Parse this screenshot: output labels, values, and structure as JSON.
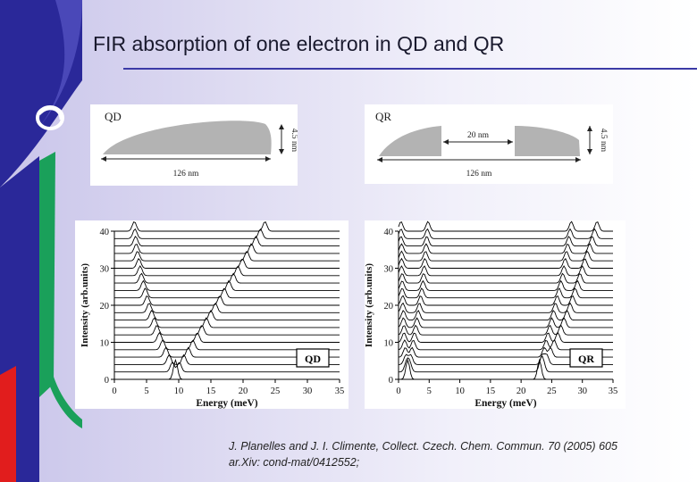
{
  "title": "FIR absorption of one electron in QD and QR",
  "colors": {
    "accent_rule": "#3b3aa6",
    "shape_fill": "#b3b3b3",
    "deco_blue": "#2a2899",
    "deco_green": "#1aa05a",
    "deco_red": "#e11d1d"
  },
  "qd_schematic": {
    "label": "QD",
    "height": "4.5 nm",
    "width": "126 nm"
  },
  "qr_schematic": {
    "label": "QR",
    "inner": "20 nm",
    "height": "4.5 nm",
    "width": "126 nm"
  },
  "plots": [
    {
      "label": "QD",
      "xlabel": "Energy (meV)",
      "ylabel": "Intensity (arb.units)"
    },
    {
      "label": "QR",
      "xlabel": "Energy (meV)",
      "ylabel": "Intensity (arb.units)"
    }
  ],
  "citation": {
    "line1": "J. Planelles and J. I. Climente, Collect. Czech. Chem. Commun. 70 (2005) 605",
    "line2": "ar.Xiv: cond-mat/0412552;"
  },
  "chart_data": [
    {
      "type": "line",
      "title": "QD",
      "xlabel": "Energy (meV)",
      "ylabel": "Intensity (arb.units)",
      "xlim": [
        0,
        35
      ],
      "ylim": [
        0,
        40
      ],
      "xticks": [
        0,
        5,
        10,
        15,
        20,
        25,
        30,
        35
      ],
      "yticks": [
        0,
        10,
        20,
        30,
        40
      ],
      "description_series": "stacked spectra at 21 offsets (0,2,...,40); two peaks per spectrum",
      "series": [
        {
          "name": "lower branch",
          "x": [
            9.5,
            9.0,
            8.5,
            8.0,
            7.5,
            7.0,
            6.6,
            6.2,
            5.8,
            5.4,
            5.1,
            4.8,
            4.5,
            4.2,
            4.0,
            3.8,
            3.6,
            3.4,
            3.3,
            3.2,
            3.1
          ],
          "y": [
            0,
            2,
            4,
            6,
            8,
            10,
            12,
            14,
            16,
            18,
            20,
            22,
            24,
            26,
            28,
            30,
            32,
            34,
            36,
            38,
            40
          ]
        },
        {
          "name": "upper branch",
          "x": [
            9.5,
            10.1,
            10.8,
            11.5,
            12.2,
            12.9,
            13.6,
            14.3,
            15.0,
            15.7,
            16.4,
            17.1,
            17.8,
            18.5,
            19.2,
            19.9,
            20.6,
            21.3,
            22.0,
            22.7,
            23.4
          ],
          "y": [
            0,
            2,
            4,
            6,
            8,
            10,
            12,
            14,
            16,
            18,
            20,
            22,
            24,
            26,
            28,
            30,
            32,
            34,
            36,
            38,
            40
          ]
        }
      ]
    },
    {
      "type": "line",
      "title": "QR",
      "xlabel": "Energy (meV)",
      "ylabel": "Intensity (arb.units)",
      "xlim": [
        0,
        35
      ],
      "ylim": [
        0,
        40
      ],
      "xticks": [
        0,
        5,
        10,
        15,
        20,
        25,
        30,
        35
      ],
      "yticks": [
        0,
        10,
        20,
        30,
        40
      ],
      "description_series": "stacked spectra at 21 offsets (0,2,...,40); four peaks per spectrum",
      "series": [
        {
          "name": "low 1",
          "x": [
            1.5,
            1.3,
            1.2,
            1.1,
            1.0,
            0.9,
            0.9,
            0.8,
            0.8,
            0.7,
            0.7,
            0.6,
            0.6,
            0.6,
            0.5,
            0.5,
            0.5,
            0.5,
            0.4,
            0.4,
            0.4
          ],
          "y": [
            0,
            2,
            4,
            6,
            8,
            10,
            12,
            14,
            16,
            18,
            20,
            22,
            24,
            26,
            28,
            30,
            32,
            34,
            36,
            38,
            40
          ]
        },
        {
          "name": "low 2",
          "x": [
            1.5,
            1.8,
            2.0,
            2.2,
            2.4,
            2.6,
            2.8,
            3.0,
            3.2,
            3.4,
            3.6,
            3.8,
            4.0,
            4.1,
            4.2,
            4.3,
            4.4,
            4.5,
            4.6,
            4.7,
            4.8
          ],
          "y": [
            0,
            2,
            4,
            6,
            8,
            10,
            12,
            14,
            16,
            18,
            20,
            22,
            24,
            26,
            28,
            30,
            32,
            34,
            36,
            38,
            40
          ]
        },
        {
          "name": "high 1",
          "x": [
            23.0,
            23.2,
            23.5,
            23.8,
            24.1,
            24.4,
            24.7,
            25.0,
            25.3,
            25.6,
            25.9,
            26.2,
            26.5,
            26.8,
            27.0,
            27.2,
            27.4,
            27.6,
            27.8,
            28.0,
            28.2
          ],
          "y": [
            0,
            2,
            4,
            6,
            8,
            10,
            12,
            14,
            16,
            18,
            20,
            22,
            24,
            26,
            28,
            30,
            32,
            34,
            36,
            38,
            40
          ]
        },
        {
          "name": "high 2",
          "x": [
            23.0,
            23.6,
            24.2,
            24.8,
            25.4,
            26.0,
            26.5,
            27.0,
            27.5,
            28.0,
            28.4,
            28.8,
            29.2,
            29.6,
            30.0,
            30.4,
            30.8,
            31.2,
            31.6,
            32.0,
            32.4
          ],
          "y": [
            0,
            2,
            4,
            6,
            8,
            10,
            12,
            14,
            16,
            18,
            20,
            22,
            24,
            26,
            28,
            30,
            32,
            34,
            36,
            38,
            40
          ]
        }
      ]
    }
  ]
}
